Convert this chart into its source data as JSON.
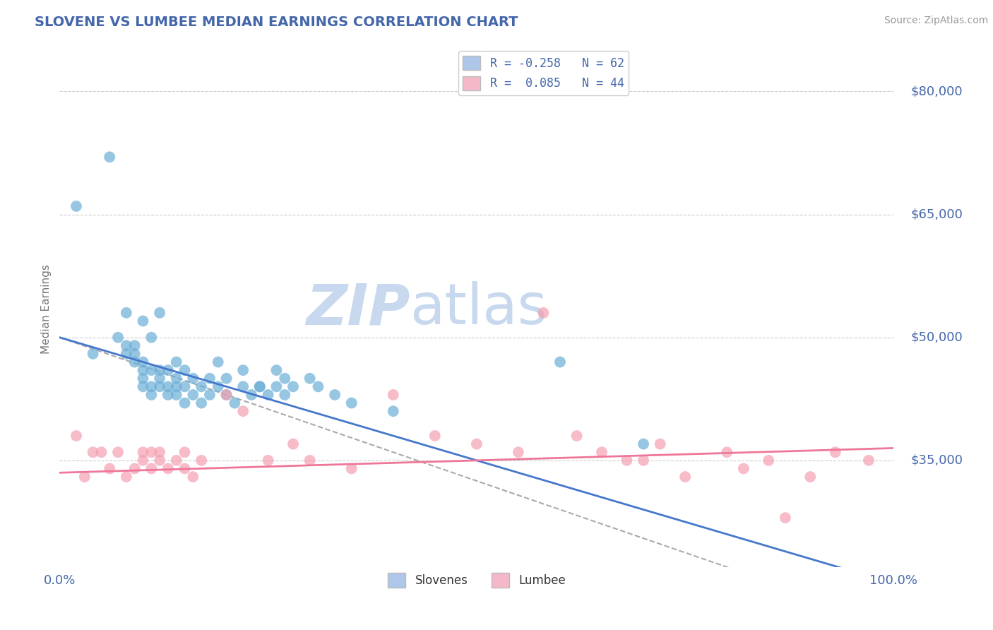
{
  "title": "SLOVENE VS LUMBEE MEDIAN EARNINGS CORRELATION CHART",
  "source": "Source: ZipAtlas.com",
  "ylabel": "Median Earnings",
  "xlim": [
    0.0,
    1.0
  ],
  "ylim": [
    22000,
    85000
  ],
  "yticks": [
    35000,
    50000,
    65000,
    80000
  ],
  "ytick_labels": [
    "$35,000",
    "$50,000",
    "$65,000",
    "$80,000"
  ],
  "xticks": [
    0.0,
    1.0
  ],
  "xtick_labels": [
    "0.0%",
    "100.0%"
  ],
  "legend_blue_label": "R = -0.258   N = 62",
  "legend_pink_label": "R =  0.085   N = 44",
  "legend_blue_color": "#aec6e8",
  "legend_pink_color": "#f4b8c8",
  "dot_blue_color": "#6baed6",
  "dot_pink_color": "#f4a0b0",
  "line_blue_color": "#4477cc",
  "line_pink_color": "#ee7799",
  "line_dashed_color": "#aaaaaa",
  "watermark_zip": "ZIP",
  "watermark_atlas": "atlas",
  "watermark_color_zip": "#c8d8ee",
  "watermark_color_atlas": "#c8d8ee",
  "title_color": "#4466aa",
  "axis_label_color": "#777777",
  "tick_label_color": "#4466aa",
  "grid_color": "#cccccc",
  "background_color": "#ffffff",
  "slovene_x": [
    0.02,
    0.06,
    0.04,
    0.07,
    0.08,
    0.08,
    0.08,
    0.09,
    0.09,
    0.09,
    0.1,
    0.1,
    0.1,
    0.1,
    0.1,
    0.11,
    0.11,
    0.11,
    0.11,
    0.12,
    0.12,
    0.12,
    0.12,
    0.13,
    0.13,
    0.13,
    0.14,
    0.14,
    0.14,
    0.14,
    0.15,
    0.15,
    0.15,
    0.16,
    0.16,
    0.17,
    0.17,
    0.18,
    0.18,
    0.19,
    0.2,
    0.2,
    0.21,
    0.22,
    0.23,
    0.24,
    0.25,
    0.26,
    0.26,
    0.27,
    0.28,
    0.3,
    0.31,
    0.33,
    0.35,
    0.4,
    0.19,
    0.22,
    0.24,
    0.27,
    0.6,
    0.7
  ],
  "slovene_y": [
    66000,
    72000,
    48000,
    50000,
    48000,
    49000,
    53000,
    47000,
    48000,
    49000,
    44000,
    45000,
    46000,
    47000,
    52000,
    43000,
    44000,
    46000,
    50000,
    44000,
    45000,
    46000,
    53000,
    43000,
    44000,
    46000,
    43000,
    44000,
    45000,
    47000,
    42000,
    44000,
    46000,
    43000,
    45000,
    42000,
    44000,
    43000,
    45000,
    44000,
    43000,
    45000,
    42000,
    44000,
    43000,
    44000,
    43000,
    44000,
    46000,
    43000,
    44000,
    45000,
    44000,
    43000,
    42000,
    41000,
    47000,
    46000,
    44000,
    45000,
    47000,
    37000
  ],
  "lumbee_x": [
    0.02,
    0.03,
    0.04,
    0.05,
    0.06,
    0.07,
    0.08,
    0.09,
    0.1,
    0.1,
    0.11,
    0.11,
    0.12,
    0.12,
    0.13,
    0.14,
    0.15,
    0.15,
    0.16,
    0.17,
    0.2,
    0.22,
    0.25,
    0.28,
    0.3,
    0.35,
    0.4,
    0.45,
    0.5,
    0.55,
    0.58,
    0.62,
    0.65,
    0.68,
    0.7,
    0.72,
    0.75,
    0.8,
    0.82,
    0.85,
    0.87,
    0.9,
    0.93,
    0.97
  ],
  "lumbee_y": [
    38000,
    33000,
    36000,
    36000,
    34000,
    36000,
    33000,
    34000,
    35000,
    36000,
    34000,
    36000,
    35000,
    36000,
    34000,
    35000,
    34000,
    36000,
    33000,
    35000,
    43000,
    41000,
    35000,
    37000,
    35000,
    34000,
    43000,
    38000,
    37000,
    36000,
    53000,
    38000,
    36000,
    35000,
    35000,
    37000,
    33000,
    36000,
    34000,
    35000,
    28000,
    33000,
    36000,
    35000
  ]
}
